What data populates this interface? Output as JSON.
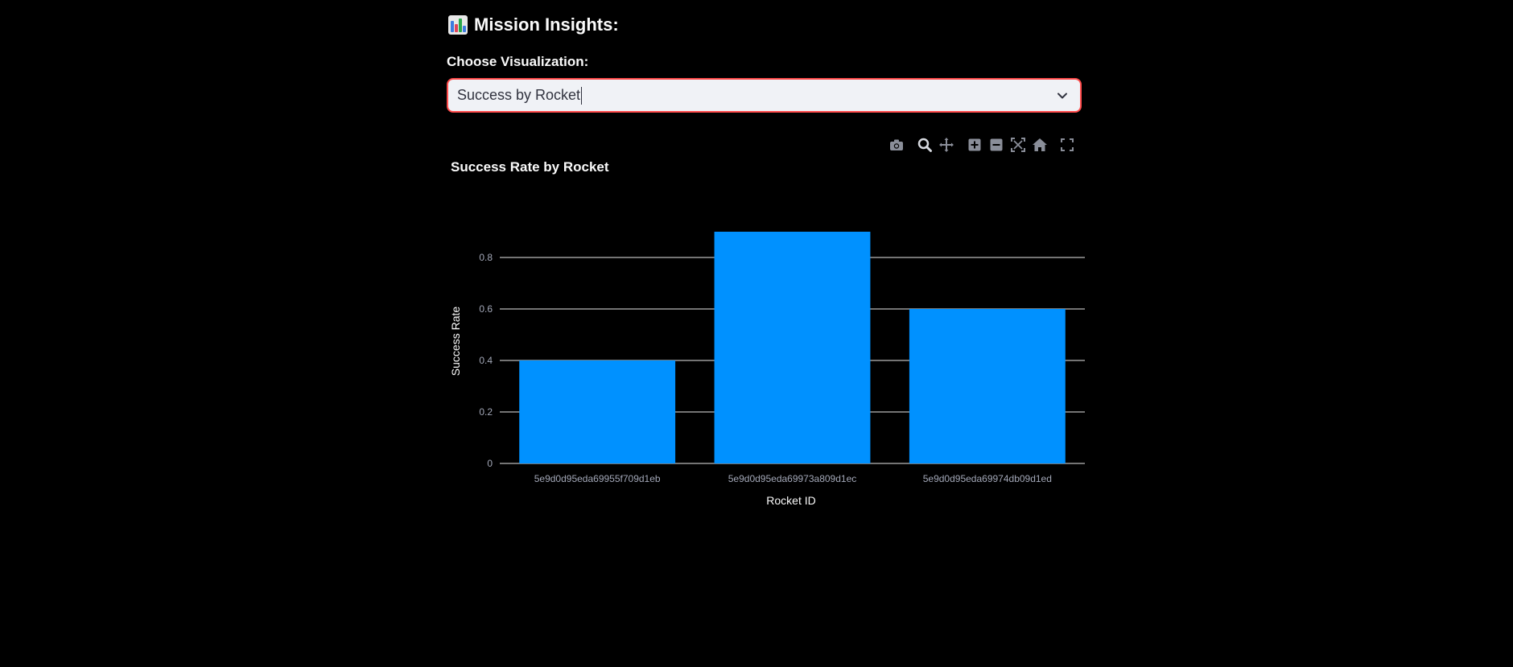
{
  "header": {
    "icon": "bar-chart-emoji-icon",
    "title": "Mission Insights:"
  },
  "visualization_select": {
    "label": "Choose Visualization:",
    "value": "Success by Rocket",
    "icon": "chevron-down-icon"
  },
  "modebar": {
    "icons": [
      "camera-icon",
      "zoom-icon",
      "pan-icon",
      "zoom-in-icon",
      "zoom-out-icon",
      "autoscale-icon",
      "reset-axes-icon",
      "fullscreen-icon"
    ]
  },
  "colors": {
    "bar": "#0091ff",
    "grid": "#e8e8e8",
    "tick_text": "#a3a8b8",
    "accent_border": "#ff4b4b"
  },
  "chart_data": {
    "type": "bar",
    "title": "Success Rate by Rocket",
    "xlabel": "Rocket ID",
    "ylabel": "Success Rate",
    "categories": [
      "5e9d0d95eda69955f709d1eb",
      "5e9d0d95eda69973a809d1ec",
      "5e9d0d95eda69974db09d1ed"
    ],
    "values": [
      0.4,
      0.9,
      0.6
    ],
    "ylim": [
      0,
      1
    ],
    "yticks": [
      0,
      0.2,
      0.4,
      0.6,
      0.8
    ],
    "ytick_labels": [
      "0",
      "0.2",
      "0.4",
      "0.6",
      "0.8"
    ],
    "grid": true,
    "legend": false
  }
}
